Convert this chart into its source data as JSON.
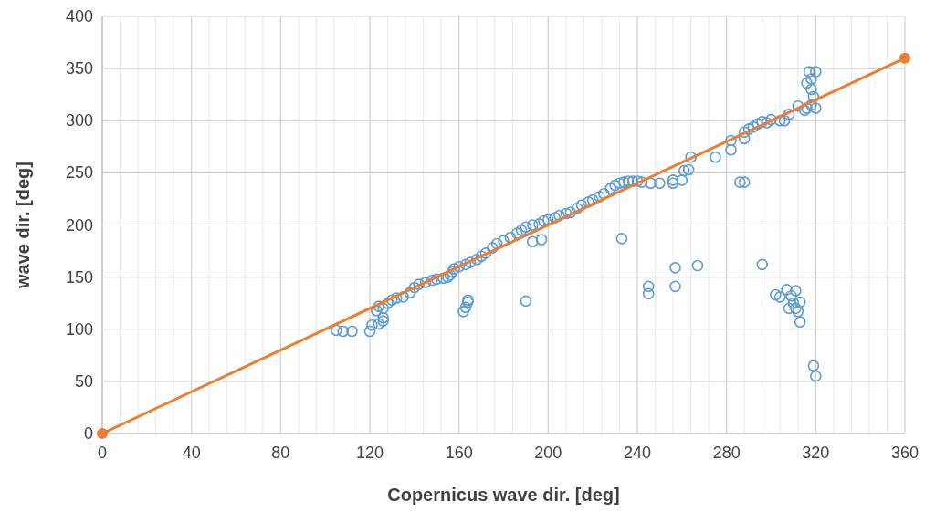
{
  "chart_data": {
    "type": "scatter",
    "xlabel": "Copernicus wave dir. [deg]",
    "ylabel": "wave dir. [deg]",
    "xlim": [
      0,
      360
    ],
    "ylim": [
      0,
      400
    ],
    "xticks": [
      0,
      {
        "value": 8,
        "label": null
      },
      {
        "value": 16,
        "label": null
      },
      {
        "value": 24,
        "label": null
      },
      {
        "value": 32,
        "label": null
      },
      40,
      {
        "value": 48,
        "label": null
      },
      {
        "value": 56,
        "label": null
      },
      {
        "value": 64,
        "label": null
      },
      {
        "value": 72,
        "label": null
      },
      80,
      {
        "value": 88,
        "label": null
      },
      {
        "value": 96,
        "label": null
      },
      {
        "value": 104,
        "label": null
      },
      {
        "value": 112,
        "label": null
      },
      120,
      {
        "value": 128,
        "label": null
      },
      {
        "value": 136,
        "label": null
      },
      {
        "value": 144,
        "label": null
      },
      {
        "value": 152,
        "label": null
      },
      160,
      {
        "value": 168,
        "label": null
      },
      {
        "value": 176,
        "label": null
      },
      {
        "value": 184,
        "label": null
      },
      {
        "value": 192,
        "label": null
      },
      200,
      {
        "value": 208,
        "label": null
      },
      {
        "value": 216,
        "label": null
      },
      {
        "value": 224,
        "label": null
      },
      {
        "value": 232,
        "label": null
      },
      240,
      {
        "value": 248,
        "label": null
      },
      {
        "value": 256,
        "label": null
      },
      {
        "value": 264,
        "label": null
      },
      {
        "value": 272,
        "label": null
      },
      280,
      {
        "value": 288,
        "label": null
      },
      {
        "value": 296,
        "label": null
      },
      {
        "value": 304,
        "label": null
      },
      {
        "value": 312,
        "label": null
      },
      320,
      {
        "value": 328,
        "label": null
      },
      {
        "value": 336,
        "label": null
      },
      {
        "value": 344,
        "label": null
      },
      {
        "value": 352,
        "label": null
      },
      360
    ],
    "yticks": [
      0,
      50,
      100,
      150,
      200,
      250,
      300,
      350,
      400
    ],
    "grid": true,
    "marker": "circle",
    "series": [
      {
        "color": "#5b9bd5",
        "x": [
          105,
          108,
          112,
          120,
          121,
          124,
          126,
          126,
          123,
          124,
          126,
          128,
          130,
          132,
          135,
          138,
          140,
          142,
          145,
          148,
          150,
          153,
          155,
          156,
          157,
          158,
          160,
          163,
          165,
          168,
          170,
          172,
          175,
          177,
          180,
          183,
          186,
          188,
          190,
          193,
          196,
          198,
          200,
          203,
          205,
          208,
          210,
          213,
          215,
          218,
          220,
          223,
          225,
          228,
          230,
          232,
          234,
          236,
          238,
          240,
          242,
          246,
          250,
          256,
          256,
          260,
          261,
          263,
          264,
          275,
          282,
          282,
          288,
          288,
          290,
          292,
          294,
          296,
          298,
          300,
          304,
          306,
          308,
          312,
          315,
          316,
          318,
          320,
          316,
          317,
          320,
          318,
          319,
          318,
          162,
          163,
          164,
          164,
          190,
          193,
          197,
          233,
          245,
          245,
          257,
          257,
          267,
          296,
          302,
          304,
          307,
          309,
          310,
          311,
          312,
          313,
          308,
          311,
          313,
          319,
          320,
          286,
          288
        ],
        "values": [
          99,
          98,
          98,
          98,
          104,
          105,
          108,
          111,
          118,
          122,
          120,
          125,
          128,
          130,
          131,
          135,
          140,
          143,
          145,
          147,
          148,
          149,
          150,
          152,
          155,
          158,
          160,
          162,
          164,
          167,
          170,
          173,
          178,
          182,
          185,
          188,
          192,
          195,
          198,
          200,
          201,
          204,
          205,
          207,
          209,
          211,
          212,
          216,
          219,
          222,
          224,
          227,
          230,
          235,
          238,
          240,
          241,
          242,
          242,
          242,
          241,
          240,
          240,
          240,
          243,
          243,
          252,
          253,
          265,
          265,
          272,
          281,
          283,
          289,
          292,
          294,
          297,
          299,
          298,
          301,
          300,
          300,
          306,
          314,
          310,
          312,
          315,
          312,
          336,
          347,
          347,
          330,
          323,
          340,
          117,
          121,
          128,
          126,
          127,
          184,
          186,
          187,
          141,
          134,
          159,
          141,
          161,
          162,
          133,
          131,
          138,
          132,
          125,
          120,
          117,
          107,
          120,
          137,
          126,
          65,
          55,
          241,
          241
        ]
      },
      {
        "type": "line",
        "color": "#ed7d31",
        "x": [
          0,
          360
        ],
        "values": [
          0,
          360
        ]
      }
    ]
  }
}
